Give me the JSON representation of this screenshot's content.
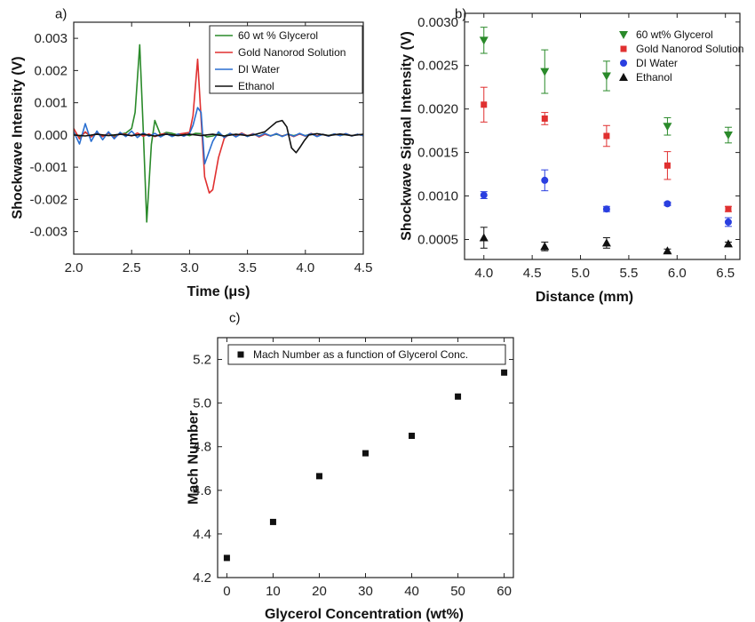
{
  "chart_data": [
    {
      "panel_label": "a)",
      "type": "line",
      "xlabel": "Time (μs)",
      "ylabel": "Shockwave Intensity (V)",
      "xlim": [
        2.0,
        4.5
      ],
      "ylim": [
        -0.0037,
        0.0035
      ],
      "x_ticks": [
        "2.0",
        "2.5",
        "3.0",
        "3.5",
        "4.0",
        "4.5"
      ],
      "y_ticks": [
        "-0.003",
        "-0.002",
        "-0.001",
        "0.000",
        "0.001",
        "0.002",
        "0.003"
      ],
      "legend_position": "top-right",
      "series": [
        {
          "name": "60 wt % Glycerol",
          "color": "#2a8a2a",
          "x": [
            2.0,
            2.05,
            2.1,
            2.15,
            2.2,
            2.25,
            2.3,
            2.35,
            2.4,
            2.45,
            2.5,
            2.53,
            2.57,
            2.6,
            2.63,
            2.67,
            2.7,
            2.75,
            2.8,
            2.85,
            2.9,
            2.95,
            3.0,
            3.05,
            3.1,
            3.15,
            3.2,
            3.25,
            3.3,
            3.35,
            3.4,
            3.45,
            3.5,
            3.55,
            3.6,
            3.65,
            3.7,
            3.75,
            3.8,
            3.85,
            3.9,
            3.95,
            4.0,
            4.05,
            4.1,
            4.15,
            4.2,
            4.25,
            4.3,
            4.35,
            4.4,
            4.45,
            4.5
          ],
          "y": [
            5e-05,
            -5e-05,
            8e-05,
            -4e-05,
            6e-05,
            -5e-05,
            5e-05,
            -3e-05,
            2e-05,
            6e-05,
            0.0002,
            0.0007,
            0.0028,
            0.0002,
            -0.0027,
            -0.0003,
            0.00045,
            0.0,
            8e-05,
            5e-05,
            0.0,
            3e-05,
            -2e-05,
            5e-05,
            4e-05,
            -6e-05,
            -3e-05,
            3e-05,
            -4e-05,
            4e-05,
            -2e-05,
            3e-05,
            -4e-05,
            2e-05,
            -3e-05,
            2e-05,
            -2e-05,
            2e-05,
            -3e-05,
            2e-05,
            -2e-05,
            3e-05,
            -2e-05,
            3e-05,
            -3e-05,
            2e-05,
            -2e-05,
            3e-05,
            -2e-05,
            2e-05,
            -3e-05,
            2e-05,
            -2e-05
          ]
        },
        {
          "name": "Gold Nanorod Solution",
          "color": "#e03030",
          "x": [
            2.0,
            2.05,
            2.1,
            2.15,
            2.2,
            2.25,
            2.3,
            2.35,
            2.4,
            2.45,
            2.5,
            2.55,
            2.6,
            2.65,
            2.7,
            2.75,
            2.8,
            2.85,
            2.9,
            2.95,
            3.0,
            3.03,
            3.07,
            3.1,
            3.13,
            3.17,
            3.2,
            3.25,
            3.3,
            3.35,
            3.4,
            3.45,
            3.5,
            3.55,
            3.6,
            3.65,
            3.7,
            3.75,
            3.8,
            3.85,
            3.9,
            3.95,
            4.0,
            4.05,
            4.1,
            4.15,
            4.2,
            4.25,
            4.3,
            4.35,
            4.4,
            4.45,
            4.5
          ],
          "y": [
            0.0002,
            -0.00012,
            0.0001,
            -6e-05,
            8e-05,
            -5e-05,
            6e-05,
            -8e-05,
            4e-05,
            2e-05,
            -3e-05,
            6e-05,
            -4e-05,
            3e-05,
            -5e-05,
            2e-05,
            4e-05,
            -3e-05,
            2e-05,
            5e-05,
            8e-05,
            0.0006,
            0.00235,
            0.0005,
            -0.0013,
            -0.0018,
            -0.0017,
            -0.0007,
            -0.0001,
            5e-05,
            -4e-05,
            6e-05,
            -3e-05,
            4e-05,
            -6e-05,
            2e-05,
            -3e-05,
            4e-05,
            -4e-05,
            2e-05,
            -5e-05,
            3e-05,
            -4e-05,
            5e-05,
            -3e-05,
            2e-05,
            -4e-05,
            3e-05,
            -2e-05,
            4e-05,
            -3e-05,
            2e-05,
            -2e-05
          ]
        },
        {
          "name": "DI Water",
          "color": "#2a6fd0",
          "x": [
            2.0,
            2.05,
            2.1,
            2.15,
            2.2,
            2.25,
            2.3,
            2.35,
            2.4,
            2.45,
            2.5,
            2.55,
            2.6,
            2.65,
            2.7,
            2.75,
            2.8,
            2.85,
            2.9,
            2.95,
            3.0,
            3.03,
            3.07,
            3.1,
            3.13,
            3.17,
            3.2,
            3.25,
            3.3,
            3.35,
            3.4,
            3.45,
            3.5,
            3.55,
            3.6,
            3.65,
            3.7,
            3.75,
            3.8,
            3.85,
            3.9,
            3.95,
            4.0,
            4.05,
            4.1,
            4.15,
            4.2,
            4.25,
            4.3,
            4.35,
            4.4,
            4.45,
            4.5
          ],
          "y": [
            0.0001,
            -0.00028,
            0.00035,
            -0.0002,
            0.00012,
            -0.00015,
            0.0001,
            -0.00012,
            8e-05,
            -5e-05,
            0.00012,
            -8e-05,
            6e-05,
            -4e-05,
            5e-05,
            -6e-05,
            4e-05,
            -5e-05,
            3e-05,
            -4e-05,
            5e-05,
            0.0003,
            0.00085,
            0.0007,
            -0.0009,
            -0.0005,
            -0.0002,
            0.0001,
            -8e-05,
            5e-05,
            -6e-05,
            4e-05,
            -5e-05,
            3e-05,
            -4e-05,
            5e-05,
            -3e-05,
            4e-05,
            -5e-05,
            3e-05,
            -4e-05,
            5e-05,
            -3e-05,
            4e-05,
            -5e-05,
            2e-05,
            -4e-05,
            3e-05,
            -2e-05,
            4e-05,
            -3e-05,
            2e-05,
            -2e-05
          ]
        },
        {
          "name": "Ethanol",
          "color": "#111111",
          "x": [
            2.0,
            2.1,
            2.2,
            2.3,
            2.4,
            2.5,
            2.6,
            2.7,
            2.8,
            2.9,
            3.0,
            3.1,
            3.2,
            3.3,
            3.4,
            3.5,
            3.55,
            3.6,
            3.65,
            3.7,
            3.75,
            3.8,
            3.84,
            3.88,
            3.92,
            3.95,
            3.99,
            4.03,
            4.1,
            4.2,
            4.3,
            4.4,
            4.5
          ],
          "y": [
            0.0,
            -3e-05,
            2e-05,
            -2e-05,
            2e-05,
            -2e-05,
            2e-05,
            -3e-05,
            2e-05,
            -2e-05,
            2e-05,
            -2e-05,
            2e-05,
            -3e-05,
            2e-05,
            -2e-05,
            0.0,
            5e-05,
            0.0001,
            0.00025,
            0.0004,
            0.00045,
            0.00025,
            -0.0004,
            -0.00055,
            -0.0004,
            -0.00018,
            0.0,
            4e-05,
            -2e-05,
            3e-05,
            -2e-05,
            2e-05
          ]
        }
      ]
    },
    {
      "panel_label": "b)",
      "type": "scatter",
      "xlabel": "Distance (mm)",
      "ylabel": "Shockwave Signal Intensity (V)",
      "xlim": [
        3.8,
        6.65
      ],
      "ylim": [
        0.00027,
        0.0031
      ],
      "x_ticks": [
        "4.0",
        "4.5",
        "5.0",
        "5.5",
        "6.0",
        "6.5"
      ],
      "y_ticks": [
        "0.0005",
        "0.0010",
        "0.0015",
        "0.0020",
        "0.0025",
        "0.0030"
      ],
      "legend_position": "top-right",
      "series": [
        {
          "name": "60 wt% Glycerol",
          "color": "#2a8a2a",
          "marker": "triangle-down",
          "x": [
            4.0,
            4.63,
            5.27,
            5.9,
            6.53
          ],
          "y": [
            0.00279,
            0.00243,
            0.00238,
            0.0018,
            0.0017
          ],
          "error": [
            0.00015,
            0.00025,
            0.00017,
            0.0001,
            9e-05
          ]
        },
        {
          "name": "Gold Nanorod Solution",
          "color": "#e03030",
          "marker": "square",
          "x": [
            4.0,
            4.63,
            5.27,
            5.9,
            6.53
          ],
          "y": [
            0.00205,
            0.00189,
            0.00169,
            0.00135,
            0.00085
          ],
          "error": [
            0.0002,
            7e-05,
            0.00012,
            0.00016,
            3e-05
          ]
        },
        {
          "name": "DI Water",
          "color": "#2a3fe0",
          "marker": "circle",
          "x": [
            4.0,
            4.63,
            5.27,
            5.9,
            6.53
          ],
          "y": [
            0.00101,
            0.00118,
            0.00085,
            0.00091,
            0.0007
          ],
          "error": [
            4e-05,
            0.00012,
            3e-05,
            2e-05,
            5e-05
          ]
        },
        {
          "name": "Ethanol",
          "color": "#111111",
          "marker": "triangle-up",
          "x": [
            4.0,
            4.63,
            5.27,
            5.9,
            6.53
          ],
          "y": [
            0.00052,
            0.00042,
            0.00046,
            0.00037,
            0.00045
          ],
          "error": [
            0.00012,
            5e-05,
            6e-05,
            2e-05,
            2e-05
          ]
        }
      ]
    },
    {
      "panel_label": "c)",
      "type": "scatter",
      "xlabel": "Glycerol Concentration (wt%)",
      "ylabel": "Mach Number",
      "xlim": [
        -2,
        62
      ],
      "ylim": [
        4.2,
        5.3
      ],
      "x_ticks": [
        "0",
        "10",
        "20",
        "30",
        "40",
        "50",
        "60"
      ],
      "y_ticks": [
        "4.2",
        "4.4",
        "4.6",
        "4.8",
        "5.0",
        "5.2"
      ],
      "legend_position": "top-left",
      "series": [
        {
          "name": "Mach Number as a function of Glycerol Conc.",
          "color": "#111111",
          "marker": "square",
          "x": [
            0,
            10,
            20,
            30,
            40,
            50,
            60
          ],
          "y": [
            4.29,
            4.455,
            4.665,
            4.77,
            4.85,
            5.03,
            5.14
          ]
        }
      ]
    }
  ]
}
